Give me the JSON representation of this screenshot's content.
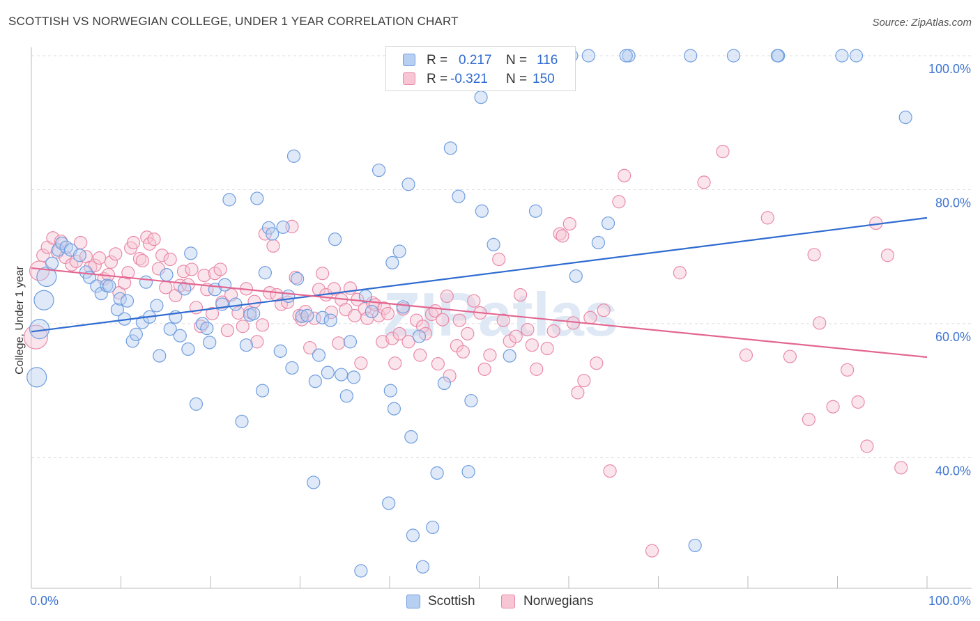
{
  "title": "SCOTTISH VS NORWEGIAN COLLEGE, UNDER 1 YEAR CORRELATION CHART",
  "source": "Source: ZipAtlas.com",
  "watermark": "ZIPatlas",
  "legend": {
    "rows": [
      {
        "r_label": "R =",
        "r_value": "0.217",
        "n_label": "N =",
        "n_value": "116"
      },
      {
        "r_label": "R =",
        "r_value": "-0.321",
        "n_label": "N =",
        "n_value": "150"
      }
    ]
  },
  "bottom_legend": {
    "items": [
      "Scottish",
      "Norwegians"
    ]
  },
  "colors": {
    "scottish_fill": "#b7cff0",
    "scottish_stroke": "#6f9de0",
    "scottish_line": "#2f6bd0",
    "norwegian_fill": "#f7c5d4",
    "norwegian_stroke": "#e98aa8",
    "norwegian_line": "#e36690",
    "tick_label": "#3d74d1",
    "grid": "#dcdcdc"
  },
  "chart_data": {
    "type": "scatter",
    "title": "SCOTTISH VS NORWEGIAN COLLEGE, UNDER 1 YEAR CORRELATION CHART",
    "xlabel": "",
    "ylabel": "College, Under 1 year",
    "xlim": [
      0,
      100
    ],
    "ylim": [
      20.5,
      103
    ],
    "x_tick_labels": [
      {
        "value": 0,
        "label": "0.0%"
      },
      {
        "value": 100,
        "label": "100.0%"
      }
    ],
    "y_tick_labels": [
      {
        "value": 40,
        "label": "40.0%"
      },
      {
        "value": 60,
        "label": "60.0%"
      },
      {
        "value": 80,
        "label": "80.0%"
      },
      {
        "value": 100,
        "label": "100.0%"
      }
    ],
    "series": [
      {
        "name": "Scottish",
        "R": 0.217,
        "N": 116,
        "trendline": [
          [
            0,
            58.8
          ],
          [
            100,
            75.8
          ]
        ],
        "points": [
          [
            0.6,
            52
          ],
          [
            0.9,
            59.2
          ],
          [
            1.4,
            63.5
          ],
          [
            1.7,
            67
          ],
          [
            2.3,
            69
          ],
          [
            3.0,
            71
          ],
          [
            3.4,
            72
          ],
          [
            3.9,
            71.4
          ],
          [
            4.4,
            71
          ],
          [
            5.4,
            70.2
          ],
          [
            6.1,
            67.7
          ],
          [
            6.5,
            66.9
          ],
          [
            7.3,
            65.6
          ],
          [
            7.8,
            64.5
          ],
          [
            8.4,
            65.7
          ],
          [
            8.7,
            65.6
          ],
          [
            9.6,
            62.1
          ],
          [
            9.9,
            63.7
          ],
          [
            10.4,
            60.7
          ],
          [
            10.7,
            63.4
          ],
          [
            11.3,
            57.4
          ],
          [
            11.7,
            58.4
          ],
          [
            12.4,
            60.2
          ],
          [
            12.8,
            66.2
          ],
          [
            13.2,
            61
          ],
          [
            14.0,
            62.7
          ],
          [
            14.3,
            55.2
          ],
          [
            15.1,
            67.3
          ],
          [
            15.5,
            59.2
          ],
          [
            16.1,
            61
          ],
          [
            16.6,
            58.2
          ],
          [
            17.1,
            65.2
          ],
          [
            17.5,
            56.2
          ],
          [
            17.8,
            70.5
          ],
          [
            18.4,
            48
          ],
          [
            19.1,
            60
          ],
          [
            19.6,
            59.3
          ],
          [
            19.9,
            57.2
          ],
          [
            20.5,
            65.1
          ],
          [
            21.3,
            62.9
          ],
          [
            21.6,
            65.8
          ],
          [
            22.1,
            78.5
          ],
          [
            22.8,
            62.9
          ],
          [
            23.5,
            45.4
          ],
          [
            24.0,
            56.8
          ],
          [
            24.4,
            61.3
          ],
          [
            24.8,
            61.5
          ],
          [
            25.2,
            78.7
          ],
          [
            25.8,
            50
          ],
          [
            26.1,
            67.6
          ],
          [
            26.5,
            74.3
          ],
          [
            26.9,
            73.4
          ],
          [
            27.8,
            55.9
          ],
          [
            28.1,
            74.4
          ],
          [
            28.7,
            64.1
          ],
          [
            29.1,
            53.4
          ],
          [
            29.3,
            85
          ],
          [
            29.7,
            66.7
          ],
          [
            30.2,
            61.1
          ],
          [
            30.8,
            61.2
          ],
          [
            31.5,
            36.3
          ],
          [
            31.7,
            51.4
          ],
          [
            32.1,
            55.3
          ],
          [
            32.5,
            60.9
          ],
          [
            33.1,
            52.7
          ],
          [
            33.4,
            60.5
          ],
          [
            33.9,
            72.6
          ],
          [
            34.6,
            52.4
          ],
          [
            35.2,
            49.2
          ],
          [
            35.6,
            57.3
          ],
          [
            36.0,
            52
          ],
          [
            36.8,
            23.1
          ],
          [
            37.3,
            64.1
          ],
          [
            38.0,
            61.8
          ],
          [
            38.8,
            82.9
          ],
          [
            39.9,
            33.2
          ],
          [
            40.1,
            50
          ],
          [
            40.5,
            47.3
          ],
          [
            41.1,
            70.8
          ],
          [
            41.5,
            62.5
          ],
          [
            42.4,
            43.1
          ],
          [
            42.6,
            28.4
          ],
          [
            43.3,
            58.1
          ],
          [
            43.7,
            23.7
          ],
          [
            44.8,
            29.6
          ],
          [
            45.3,
            37.7
          ],
          [
            46.1,
            51.1
          ],
          [
            46.8,
            86.2
          ],
          [
            47.7,
            79
          ],
          [
            48.8,
            37.9
          ],
          [
            49.1,
            48.5
          ],
          [
            50.3,
            76.8
          ],
          [
            51.6,
            71.8
          ],
          [
            53.4,
            55.2
          ],
          [
            54.5,
            100
          ],
          [
            56.3,
            76.8
          ],
          [
            60.8,
            67.1
          ],
          [
            62.2,
            100
          ],
          [
            63.3,
            72.1
          ],
          [
            64.4,
            75
          ],
          [
            66.7,
            100
          ],
          [
            73.6,
            100
          ],
          [
            74.1,
            26.9
          ],
          [
            78.4,
            100
          ],
          [
            83.4,
            100
          ],
          [
            97.6,
            90.8
          ],
          [
            83.3,
            100
          ],
          [
            66.4,
            100
          ],
          [
            60.3,
            100
          ],
          [
            90.5,
            100
          ],
          [
            92.1,
            100
          ],
          [
            50.2,
            93.8
          ],
          [
            40.3,
            69.1
          ],
          [
            57.5,
            98.5
          ],
          [
            42.1,
            80.8
          ],
          [
            47.0,
            100
          ]
        ]
      },
      {
        "name": "Norwegians",
        "R": -0.321,
        "N": 150,
        "trendline": [
          [
            0,
            68.3
          ],
          [
            100,
            55
          ]
        ],
        "points": [
          [
            0.5,
            58
          ],
          [
            0.9,
            67.9
          ],
          [
            1.3,
            70.2
          ],
          [
            1.8,
            71.4
          ],
          [
            2.4,
            72.8
          ],
          [
            2.9,
            70.7
          ],
          [
            3.3,
            72.3
          ],
          [
            3.8,
            69.9
          ],
          [
            4.5,
            68.8
          ],
          [
            5.0,
            69.3
          ],
          [
            5.5,
            72.1
          ],
          [
            6.1,
            70
          ],
          [
            6.6,
            68.4
          ],
          [
            7.1,
            68.7
          ],
          [
            7.6,
            69.8
          ],
          [
            8.1,
            66.7
          ],
          [
            8.6,
            67.3
          ],
          [
            8.9,
            69.2
          ],
          [
            9.4,
            70.4
          ],
          [
            9.8,
            64.6
          ],
          [
            10.4,
            66.1
          ],
          [
            10.8,
            67.6
          ],
          [
            11.1,
            71.3
          ],
          [
            11.4,
            72.1
          ],
          [
            12.1,
            69.7
          ],
          [
            12.4,
            69.4
          ],
          [
            12.9,
            72.9
          ],
          [
            13.2,
            71.9
          ],
          [
            13.7,
            72.6
          ],
          [
            14.2,
            68.2
          ],
          [
            14.6,
            70.2
          ],
          [
            15.0,
            65.4
          ],
          [
            15.5,
            69.6
          ],
          [
            16.1,
            64.2
          ],
          [
            16.6,
            65.7
          ],
          [
            17.0,
            67.8
          ],
          [
            17.5,
            65.8
          ],
          [
            17.9,
            68.1
          ],
          [
            18.4,
            62.4
          ],
          [
            18.9,
            59.6
          ],
          [
            19.3,
            67.2
          ],
          [
            19.6,
            65.1
          ],
          [
            20.2,
            61.5
          ],
          [
            20.5,
            67.5
          ],
          [
            21.1,
            68.1
          ],
          [
            21.3,
            63.2
          ],
          [
            21.9,
            59
          ],
          [
            22.3,
            64.3
          ],
          [
            23.1,
            61.6
          ],
          [
            23.6,
            59.6
          ],
          [
            24.0,
            65.2
          ],
          [
            24.4,
            61.7
          ],
          [
            24.9,
            63.3
          ],
          [
            25.2,
            57.3
          ],
          [
            25.8,
            59.8
          ],
          [
            26.1,
            73.4
          ],
          [
            26.6,
            64.6
          ],
          [
            27.0,
            71.6
          ],
          [
            27.4,
            64.3
          ],
          [
            27.9,
            62.9
          ],
          [
            28.6,
            63.2
          ],
          [
            29.1,
            74.5
          ],
          [
            29.5,
            66.9
          ],
          [
            29.9,
            61.2
          ],
          [
            30.2,
            60.6
          ],
          [
            30.6,
            61.8
          ],
          [
            31.1,
            56.4
          ],
          [
            31.6,
            60.8
          ],
          [
            32.1,
            65.1
          ],
          [
            32.5,
            67.5
          ],
          [
            32.9,
            64.3
          ],
          [
            33.5,
            61.7
          ],
          [
            33.8,
            65.2
          ],
          [
            34.3,
            57.1
          ],
          [
            34.6,
            63.6
          ],
          [
            35.1,
            62.1
          ],
          [
            35.6,
            65.3
          ],
          [
            36.1,
            61.2
          ],
          [
            36.4,
            63.6
          ],
          [
            36.8,
            54.1
          ],
          [
            37.2,
            62.2
          ],
          [
            37.5,
            60.8
          ],
          [
            38.1,
            63.1
          ],
          [
            38.4,
            62.8
          ],
          [
            38.8,
            61.2
          ],
          [
            39.2,
            57.3
          ],
          [
            39.4,
            62.3
          ],
          [
            39.8,
            61.5
          ],
          [
            40.3,
            57.8
          ],
          [
            40.6,
            54.1
          ],
          [
            41.1,
            58.5
          ],
          [
            41.5,
            62.2
          ],
          [
            42.1,
            57.3
          ],
          [
            43.0,
            60.5
          ],
          [
            43.4,
            55.3
          ],
          [
            43.7,
            59.6
          ],
          [
            44.0,
            58.5
          ],
          [
            44.7,
            61.4
          ],
          [
            45.1,
            61.9
          ],
          [
            45.4,
            54
          ],
          [
            45.9,
            60.6
          ],
          [
            46.4,
            64.1
          ],
          [
            46.7,
            52.2
          ],
          [
            47.5,
            56.7
          ],
          [
            47.8,
            60.5
          ],
          [
            48.2,
            55.8
          ],
          [
            48.7,
            58.5
          ],
          [
            49.4,
            63.4
          ],
          [
            50.1,
            61.6
          ],
          [
            50.6,
            53.2
          ],
          [
            51.2,
            55.3
          ],
          [
            52.2,
            69.6
          ],
          [
            52.7,
            60.5
          ],
          [
            53.4,
            57.4
          ],
          [
            54.1,
            58.1
          ],
          [
            54.6,
            64.3
          ],
          [
            55.4,
            59.1
          ],
          [
            55.9,
            56.8
          ],
          [
            56.4,
            53.2
          ],
          [
            57.6,
            56.3
          ],
          [
            58.3,
            58.9
          ],
          [
            59.0,
            73.4
          ],
          [
            59.3,
            73.1
          ],
          [
            60.1,
            74.9
          ],
          [
            60.5,
            60.1
          ],
          [
            61.0,
            49.7
          ],
          [
            61.7,
            51.5
          ],
          [
            62.4,
            60.9
          ],
          [
            63.1,
            54.1
          ],
          [
            63.9,
            62
          ],
          [
            64.6,
            38
          ],
          [
            65.6,
            78.2
          ],
          [
            66.2,
            82.1
          ],
          [
            69.3,
            26.1
          ],
          [
            72.4,
            67.6
          ],
          [
            75.1,
            81.1
          ],
          [
            77.2,
            85.7
          ],
          [
            79.8,
            55.3
          ],
          [
            82.2,
            75.8
          ],
          [
            84.7,
            55.1
          ],
          [
            86.8,
            45.7
          ],
          [
            87.4,
            70.3
          ],
          [
            88.0,
            60.1
          ],
          [
            89.5,
            47.6
          ],
          [
            91.1,
            53.1
          ],
          [
            92.3,
            48.3
          ],
          [
            93.3,
            41.7
          ],
          [
            94.3,
            75
          ],
          [
            95.6,
            70.2
          ],
          [
            97.1,
            38.5
          ]
        ]
      }
    ]
  }
}
